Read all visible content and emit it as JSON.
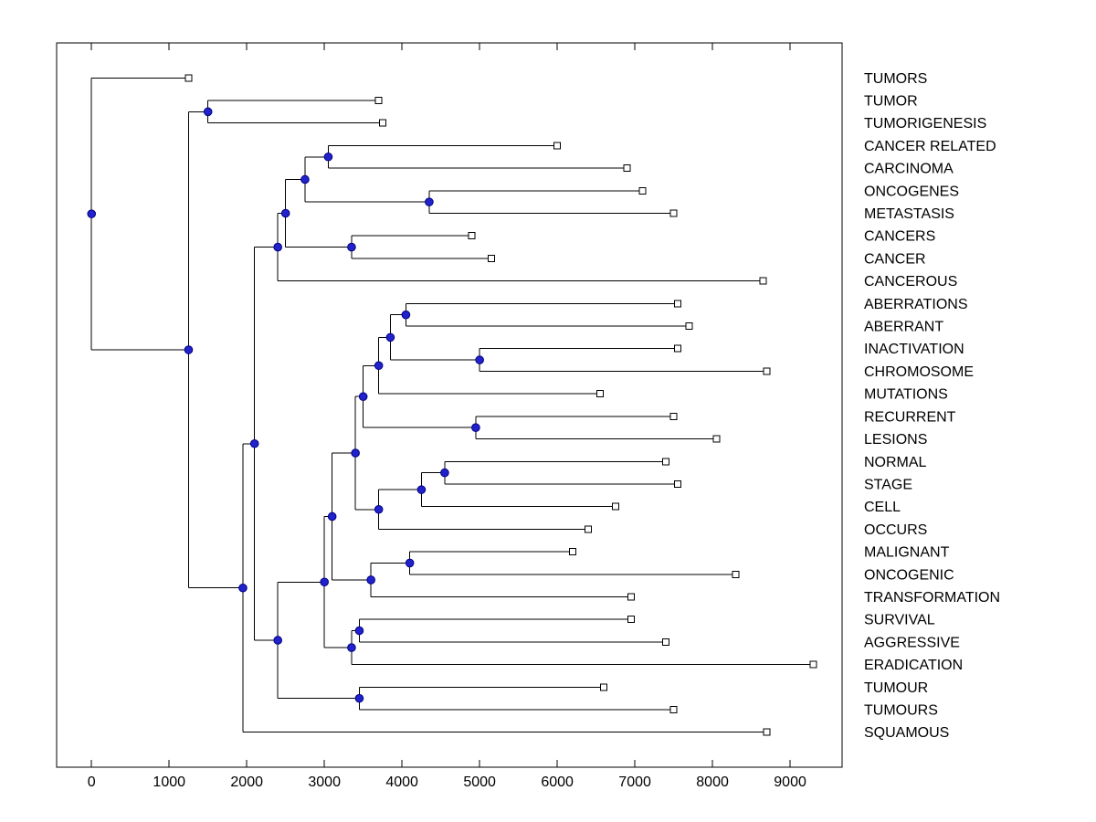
{
  "chart_data": {
    "type": "dendrogram",
    "orientation": "left_to_right",
    "title": "",
    "xlabel": "",
    "ylabel": "",
    "grid": false,
    "legend": false,
    "xlim": [
      -450,
      9670
    ],
    "x_ticks": [
      0,
      1000,
      2000,
      3000,
      4000,
      5000,
      6000,
      7000,
      8000,
      9000
    ],
    "leaves_top_to_bottom": [
      "TUMORS",
      "TUMOR",
      "TUMORIGENESIS",
      "CANCER RELATED",
      "CARCINOMA",
      "ONCOGENES",
      "METASTASIS",
      "CANCERS",
      "CANCER",
      "CANCEROUS",
      "ABERRATIONS",
      "ABERRANT",
      "INACTIVATION",
      "CHROMOSOME",
      "MUTATIONS",
      "RECURRENT",
      "LESIONS",
      "NORMAL",
      "STAGE",
      "CELL",
      "OCCURS",
      "MALIGNANT",
      "ONCOGENIC",
      "TRANSFORMATION",
      "SURVIVAL",
      "AGGRESSIVE",
      "ERADICATION",
      "TUMOUR",
      "TUMOURS",
      "SQUAMOUS"
    ],
    "colors": {
      "background": "#ffffff",
      "axes": "#000000",
      "branch": "#000000",
      "text": "#000000",
      "branch_node_fill": "#2222cc",
      "branch_node_edge": "#000080",
      "leaf_node_fill": "#ffffff",
      "leaf_node_edge": "#000000"
    },
    "tree": {
      "x": 0,
      "children": [
        {
          "name": "TUMORS",
          "x": 1250
        },
        {
          "x": 1250,
          "children": [
            {
              "x": 1500,
              "children": [
                {
                  "name": "TUMOR",
                  "x": 3700
                },
                {
                  "name": "TUMORIGENESIS",
                  "x": 3750
                }
              ]
            },
            {
              "x": 1950,
              "children": [
                {
                  "x": 2100,
                  "children": [
                    {
                      "x": 2400,
                      "children": [
                        {
                          "x": 2500,
                          "children": [
                            {
                              "x": 2750,
                              "children": [
                                {
                                  "x": 3050,
                                  "children": [
                                    {
                                      "name": "CANCER RELATED",
                                      "x": 6000
                                    },
                                    {
                                      "name": "CARCINOMA",
                                      "x": 6900
                                    }
                                  ]
                                },
                                {
                                  "x": 4350,
                                  "children": [
                                    {
                                      "name": "ONCOGENES",
                                      "x": 7100
                                    },
                                    {
                                      "name": "METASTASIS",
                                      "x": 7500
                                    }
                                  ]
                                }
                              ]
                            },
                            {
                              "x": 3350,
                              "children": [
                                {
                                  "name": "CANCERS",
                                  "x": 4900
                                },
                                {
                                  "name": "CANCER",
                                  "x": 5150
                                }
                              ]
                            }
                          ]
                        },
                        {
                          "name": "CANCEROUS",
                          "x": 8650
                        }
                      ]
                    },
                    {
                      "x": 2400,
                      "children": [
                        {
                          "x": 3000,
                          "children": [
                            {
                              "x": 3100,
                              "children": [
                                {
                                  "x": 3400,
                                  "children": [
                                    {
                                      "x": 3500,
                                      "children": [
                                        {
                                          "x": 3700,
                                          "children": [
                                            {
                                              "x": 3850,
                                              "children": [
                                                {
                                                  "x": 4050,
                                                  "children": [
                                                    {
                                                      "name": "ABERRATIONS",
                                                      "x": 7550
                                                    },
                                                    {
                                                      "name": "ABERRANT",
                                                      "x": 7700
                                                    }
                                                  ]
                                                },
                                                {
                                                  "x": 5000,
                                                  "children": [
                                                    {
                                                      "name": "INACTIVATION",
                                                      "x": 7550
                                                    },
                                                    {
                                                      "name": "CHROMOSOME",
                                                      "x": 8700
                                                    }
                                                  ]
                                                }
                                              ]
                                            },
                                            {
                                              "name": "MUTATIONS",
                                              "x": 6550
                                            }
                                          ]
                                        },
                                        {
                                          "x": 4950,
                                          "children": [
                                            {
                                              "name": "RECURRENT",
                                              "x": 7500
                                            },
                                            {
                                              "name": "LESIONS",
                                              "x": 8050
                                            }
                                          ]
                                        }
                                      ]
                                    },
                                    {
                                      "x": 3700,
                                      "children": [
                                        {
                                          "x": 4250,
                                          "children": [
                                            {
                                              "x": 4550,
                                              "children": [
                                                {
                                                  "name": "NORMAL",
                                                  "x": 7400
                                                },
                                                {
                                                  "name": "STAGE",
                                                  "x": 7550
                                                }
                                              ]
                                            },
                                            {
                                              "name": "CELL",
                                              "x": 6750
                                            }
                                          ]
                                        },
                                        {
                                          "name": "OCCURS",
                                          "x": 6400
                                        }
                                      ]
                                    }
                                  ]
                                },
                                {
                                  "x": 3600,
                                  "children": [
                                    {
                                      "x": 4100,
                                      "children": [
                                        {
                                          "name": "MALIGNANT",
                                          "x": 6200
                                        },
                                        {
                                          "name": "ONCOGENIC",
                                          "x": 8300
                                        }
                                      ]
                                    },
                                    {
                                      "name": "TRANSFORMATION",
                                      "x": 6950
                                    }
                                  ]
                                }
                              ]
                            },
                            {
                              "x": 3350,
                              "children": [
                                {
                                  "x": 3450,
                                  "children": [
                                    {
                                      "name": "SURVIVAL",
                                      "x": 6950
                                    },
                                    {
                                      "name": "AGGRESSIVE",
                                      "x": 7400
                                    }
                                  ]
                                },
                                {
                                  "name": "ERADICATION",
                                  "x": 9300
                                }
                              ]
                            }
                          ]
                        },
                        {
                          "x": 3450,
                          "children": [
                            {
                              "name": "TUMOUR",
                              "x": 6600
                            },
                            {
                              "name": "TUMOURS",
                              "x": 7500
                            }
                          ]
                        }
                      ]
                    }
                  ]
                },
                {
                  "name": "SQUAMOUS",
                  "x": 8700
                }
              ]
            }
          ]
        }
      ]
    }
  }
}
